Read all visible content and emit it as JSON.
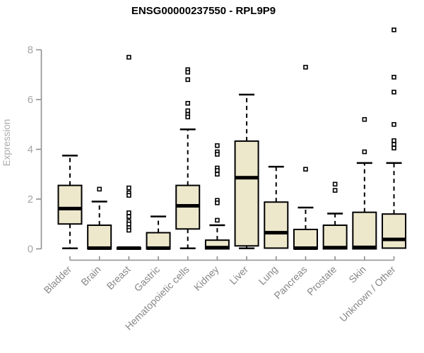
{
  "chart_data": {
    "type": "boxplot",
    "title": "ENSG00000237550 - RPL9P9",
    "ylabel": "Expression",
    "ylim": [
      0,
      8.9
    ],
    "yticks": [
      0,
      2,
      4,
      6,
      8
    ],
    "grid": false,
    "legend": "none",
    "categories": [
      "Bladder",
      "Brain",
      "Breast",
      "Gastric",
      "Hematopoietic cells",
      "Kidney",
      "Liver",
      "Lung",
      "Pancreas",
      "Prostate",
      "Skin",
      "Unknown / Other"
    ],
    "series": [
      {
        "name": "Bladder",
        "min": 0.02,
        "q1": 1.0,
        "median": 1.62,
        "q3": 2.55,
        "max": 3.75,
        "outliers": []
      },
      {
        "name": "Brain",
        "min": 0.0,
        "q1": 0.0,
        "median": 0.03,
        "q3": 0.95,
        "max": 1.9,
        "outliers": [
          2.4
        ]
      },
      {
        "name": "Breast",
        "min": 0.0,
        "q1": 0.0,
        "median": 0.03,
        "q3": 0.05,
        "max": 0.05,
        "outliers": [
          7.7,
          2.45,
          2.25,
          2.15,
          1.45,
          1.3,
          1.1,
          1.0,
          0.85,
          0.75
        ]
      },
      {
        "name": "Gastric",
        "min": 0.0,
        "q1": 0.0,
        "median": 0.03,
        "q3": 0.65,
        "max": 1.3,
        "outliers": []
      },
      {
        "name": "Hematopoietic cells",
        "min": 0.02,
        "q1": 0.8,
        "median": 1.73,
        "q3": 2.55,
        "max": 4.8,
        "outliers": [
          7.2,
          7.1,
          6.8,
          5.85,
          5.55,
          5.4,
          5.3
        ]
      },
      {
        "name": "Kidney",
        "min": 0.0,
        "q1": 0.0,
        "median": 0.05,
        "q3": 0.35,
        "max": 0.95,
        "outliers": [
          4.15,
          3.9,
          3.8,
          3.25,
          3.15,
          3.0,
          1.95,
          1.85,
          1.15
        ]
      },
      {
        "name": "Liver",
        "min": 0.02,
        "q1": 0.12,
        "median": 2.86,
        "q3": 4.33,
        "max": 6.2,
        "outliers": []
      },
      {
        "name": "Lung",
        "min": 0.0,
        "q1": 0.03,
        "median": 0.65,
        "q3": 1.88,
        "max": 3.3,
        "outliers": []
      },
      {
        "name": "Pancreas",
        "min": 0.0,
        "q1": 0.0,
        "median": 0.03,
        "q3": 0.78,
        "max": 1.66,
        "outliers": [
          7.3,
          3.2
        ]
      },
      {
        "name": "Prostate",
        "min": 0.0,
        "q1": 0.0,
        "median": 0.05,
        "q3": 0.95,
        "max": 1.42,
        "outliers": [
          2.6,
          2.35
        ]
      },
      {
        "name": "Skin",
        "min": 0.0,
        "q1": 0.0,
        "median": 0.06,
        "q3": 1.47,
        "max": 3.45,
        "outliers": [
          5.2,
          3.9
        ]
      },
      {
        "name": "Unknown / Other",
        "min": 0.0,
        "q1": 0.03,
        "median": 0.38,
        "q3": 1.4,
        "max": 3.45,
        "outliers": [
          8.8,
          6.9,
          6.3,
          5.0,
          4.35,
          4.2,
          4.05
        ]
      }
    ],
    "colors": {
      "box_fill": "#EDE7CC",
      "box_stroke": "#000000",
      "median": "#000000",
      "whisker": "#000000",
      "outlier_stroke": "#000000",
      "axis_line": "#8F8F8F",
      "y_tick_label": "#A3A3A3",
      "x_tick_label": "#878787",
      "axis_title": "#ABABAB",
      "title": "#000000"
    }
  }
}
